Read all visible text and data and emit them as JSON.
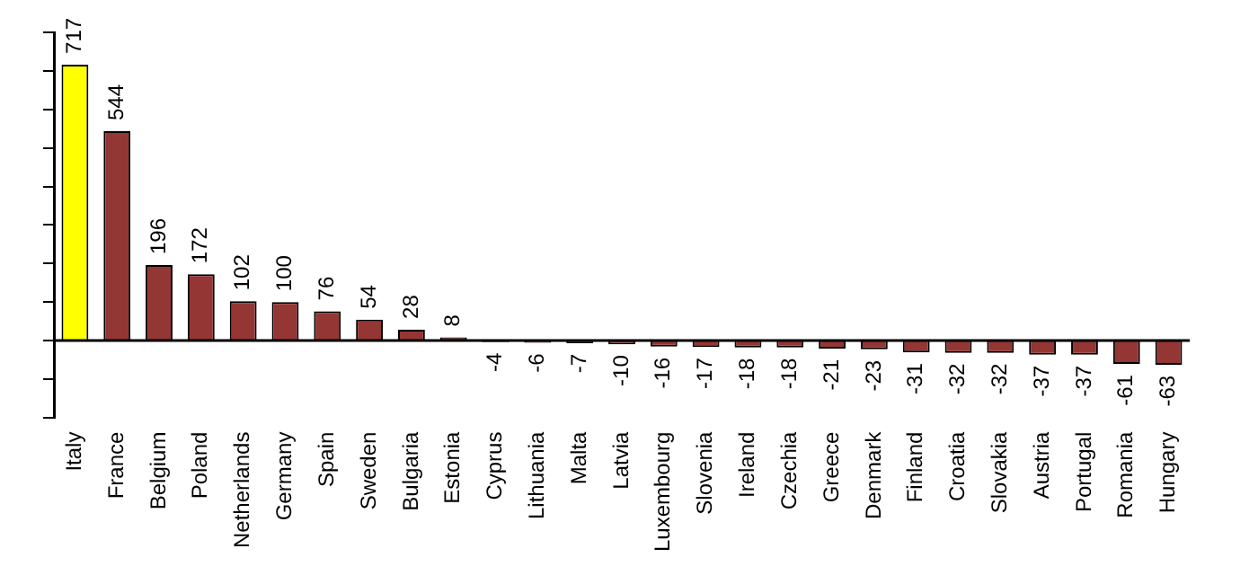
{
  "chart_data": {
    "type": "bar",
    "categories": [
      "Italy",
      "France",
      "Belgium",
      "Poland",
      "Netherlands",
      "Germany",
      "Spain",
      "Sweden",
      "Bulgaria",
      "Estonia",
      "Cyprus",
      "Lithuania",
      "Malta",
      "Latvia",
      "Luxembourg",
      "Slovenia",
      "Ireland",
      "Czechia",
      "Greece",
      "Denmark",
      "Finland",
      "Croatia",
      "Slovakia",
      "Austria",
      "Portugal",
      "Romania",
      "Hungary"
    ],
    "values": [
      717,
      544,
      196,
      172,
      102,
      100,
      76,
      54,
      28,
      8,
      -4,
      -6,
      -7,
      -10,
      -16,
      -17,
      -18,
      -18,
      -21,
      -23,
      -31,
      -32,
      -32,
      -37,
      -37,
      -61,
      -63
    ],
    "colors": [
      "#ffff00",
      "#943634",
      "#943634",
      "#943634",
      "#943634",
      "#943634",
      "#943634",
      "#943634",
      "#943634",
      "#943634",
      "#943634",
      "#943634",
      "#943634",
      "#943634",
      "#943634",
      "#943634",
      "#943634",
      "#943634",
      "#943634",
      "#943634",
      "#943634",
      "#943634",
      "#943634",
      "#943634",
      "#943634",
      "#943634",
      "#943634"
    ],
    "ylim": [
      -200,
      800
    ],
    "yticks": [
      {
        "value": -200,
        "label": null
      },
      {
        "value": -100,
        "label": null
      },
      {
        "value": 0,
        "label": null
      },
      {
        "value": 100,
        "label": null
      },
      {
        "value": 200,
        "label": null
      },
      {
        "value": 300,
        "label": null
      },
      {
        "value": 400,
        "label": null
      },
      {
        "value": 500,
        "label": null
      },
      {
        "value": 600,
        "label": null
      },
      {
        "value": 700,
        "label": null
      },
      {
        "value": 800,
        "label": null
      }
    ],
    "tick_labels": "x",
    "data_labels": true,
    "grid": false,
    "legend": false,
    "ref_lines": [
      {
        "axis": "y",
        "value": 0,
        "color": "#000000"
      }
    ]
  }
}
